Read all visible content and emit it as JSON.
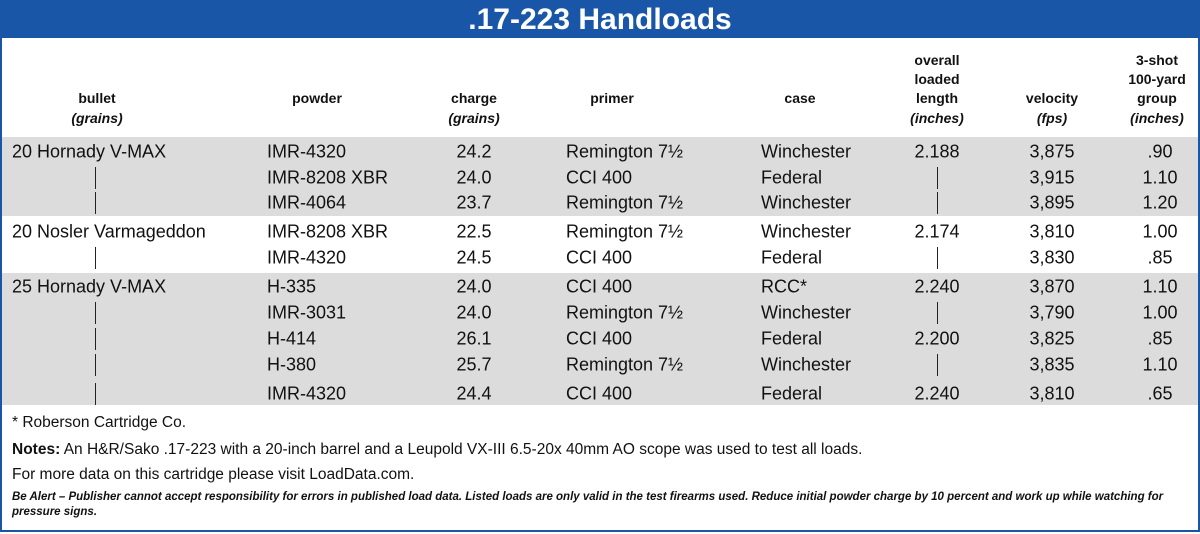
{
  "title": ".17-223 Handloads",
  "table": {
    "headers": [
      {
        "lines": [
          "bullet"
        ],
        "unit": "(grains)"
      },
      {
        "lines": [
          "powder"
        ]
      },
      {
        "lines": [
          "charge"
        ],
        "unit": "(grains)"
      },
      {
        "lines": [
          "primer"
        ]
      },
      {
        "lines": [
          "case"
        ]
      },
      {
        "lines": [
          "overall",
          "loaded",
          "length"
        ],
        "unit": "(inches)"
      },
      {
        "lines": [
          "velocity"
        ],
        "unit": "(fps)"
      },
      {
        "lines": [
          "3-shot",
          "100-yard",
          "group"
        ],
        "unit": "(inches)"
      }
    ],
    "groups": [
      {
        "rows": [
          [
            "20 Hornady V-MAX",
            "IMR-4320",
            "24.2",
            "Remington 7½",
            "Winchester",
            "2.188",
            "3,875",
            ".90"
          ],
          [
            null,
            "IMR-8208 XBR",
            "24.0",
            "CCI 400",
            "Federal",
            null,
            "3,915",
            "1.10"
          ],
          [
            null,
            "IMR-4064",
            "23.7",
            "Remington 7½",
            "Winchester",
            null,
            "3,895",
            "1.20"
          ]
        ]
      },
      {
        "rows": [
          [
            "20 Nosler Varmageddon",
            "IMR-8208 XBR",
            "22.5",
            "Remington 7½",
            "Winchester",
            "2.174",
            "3,810",
            "1.00"
          ],
          [
            null,
            "IMR-4320",
            "24.5",
            "CCI 400",
            "Federal",
            null,
            "3,830",
            ".85"
          ]
        ]
      },
      {
        "rows": [
          [
            "25 Hornady V-MAX",
            "H-335",
            "24.0",
            "CCI 400",
            "RCC*",
            "2.240",
            "3,870",
            "1.10"
          ],
          [
            null,
            "IMR-3031",
            "24.0",
            "Remington 7½",
            "Winchester",
            null,
            "3,790",
            "1.00"
          ],
          [
            null,
            "H-414",
            "26.1",
            "CCI 400",
            "Federal",
            "2.200",
            "3,825",
            ".85"
          ],
          [
            null,
            "H-380",
            "25.7",
            "Remington 7½",
            "Winchester",
            null,
            "3,835",
            "1.10"
          ],
          [
            null,
            "IMR-4320",
            "24.4",
            "CCI 400",
            "Federal",
            "2.240",
            "3,810",
            ".65"
          ]
        ]
      }
    ]
  },
  "footnote": "* Roberson Cartridge Co.",
  "notes": {
    "label": "Notes:",
    "text": "An H&R/Sako .17-223 with a 20-inch barrel and a Leupold VX-III 6.5-20x 40mm AO scope was used to test all loads."
  },
  "more": "For more data on this cartridge please visit LoadData.com.",
  "disclaimer": "Be Alert – Publisher cannot accept responsibility for errors in published load data. Listed loads are only valid in the test firearms used. Reduce initial powder charge by 10 percent and work up while watching for pressure signs."
}
